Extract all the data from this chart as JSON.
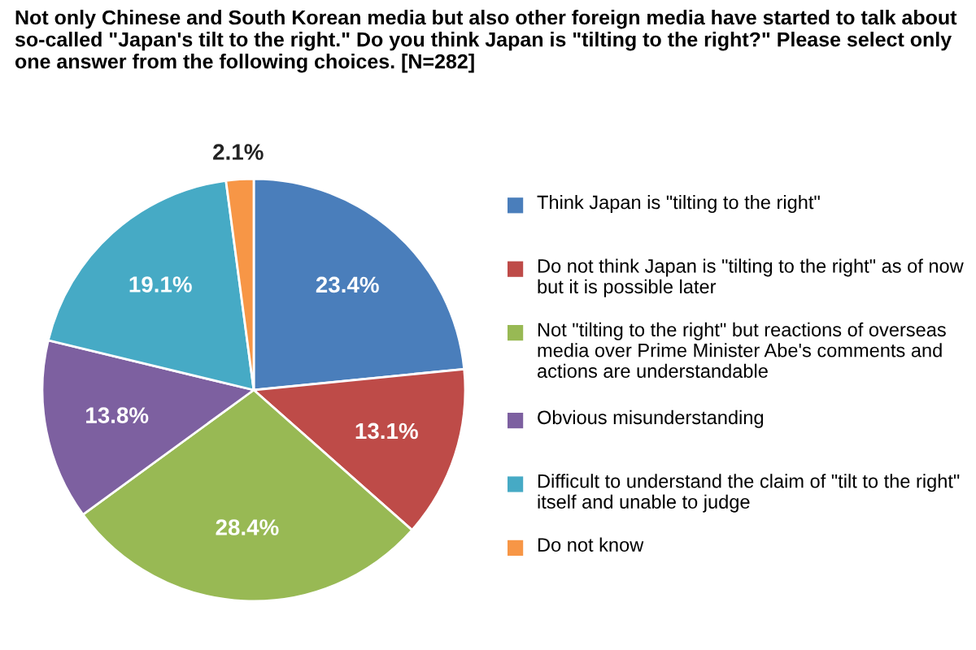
{
  "chart_data": {
    "type": "pie",
    "title": "Not only Chinese and South Korean media but also other foreign media have started to talk about so-called \"Japan's tilt to the right.\" Do you think Japan is \"tilting to the right?\" Please select only one answer from the following choices. [N=282]",
    "categories": [
      "Think Japan is \"tilting to the right\"",
      "Do not think Japan is \"tilting to the right\" as of now but it is possible later",
      "Not \"tilting to the right\" but reactions of overseas media over Prime Minister Abe's comments and actions are understandable",
      "Obvious misunderstanding",
      "Difficult to understand the claim of \"tilt to the right\" itself and unable to judge",
      "Do not know"
    ],
    "values": [
      23.4,
      13.1,
      28.4,
      13.8,
      19.1,
      2.1
    ],
    "value_labels": [
      "23.4%",
      "13.1%",
      "28.4%",
      "13.8%",
      "19.1%",
      "2.1%"
    ],
    "colors": [
      "#4a7ebb",
      "#be4b48",
      "#98b954",
      "#7d60a0",
      "#46aac5",
      "#f79646"
    ],
    "legend": "right"
  }
}
